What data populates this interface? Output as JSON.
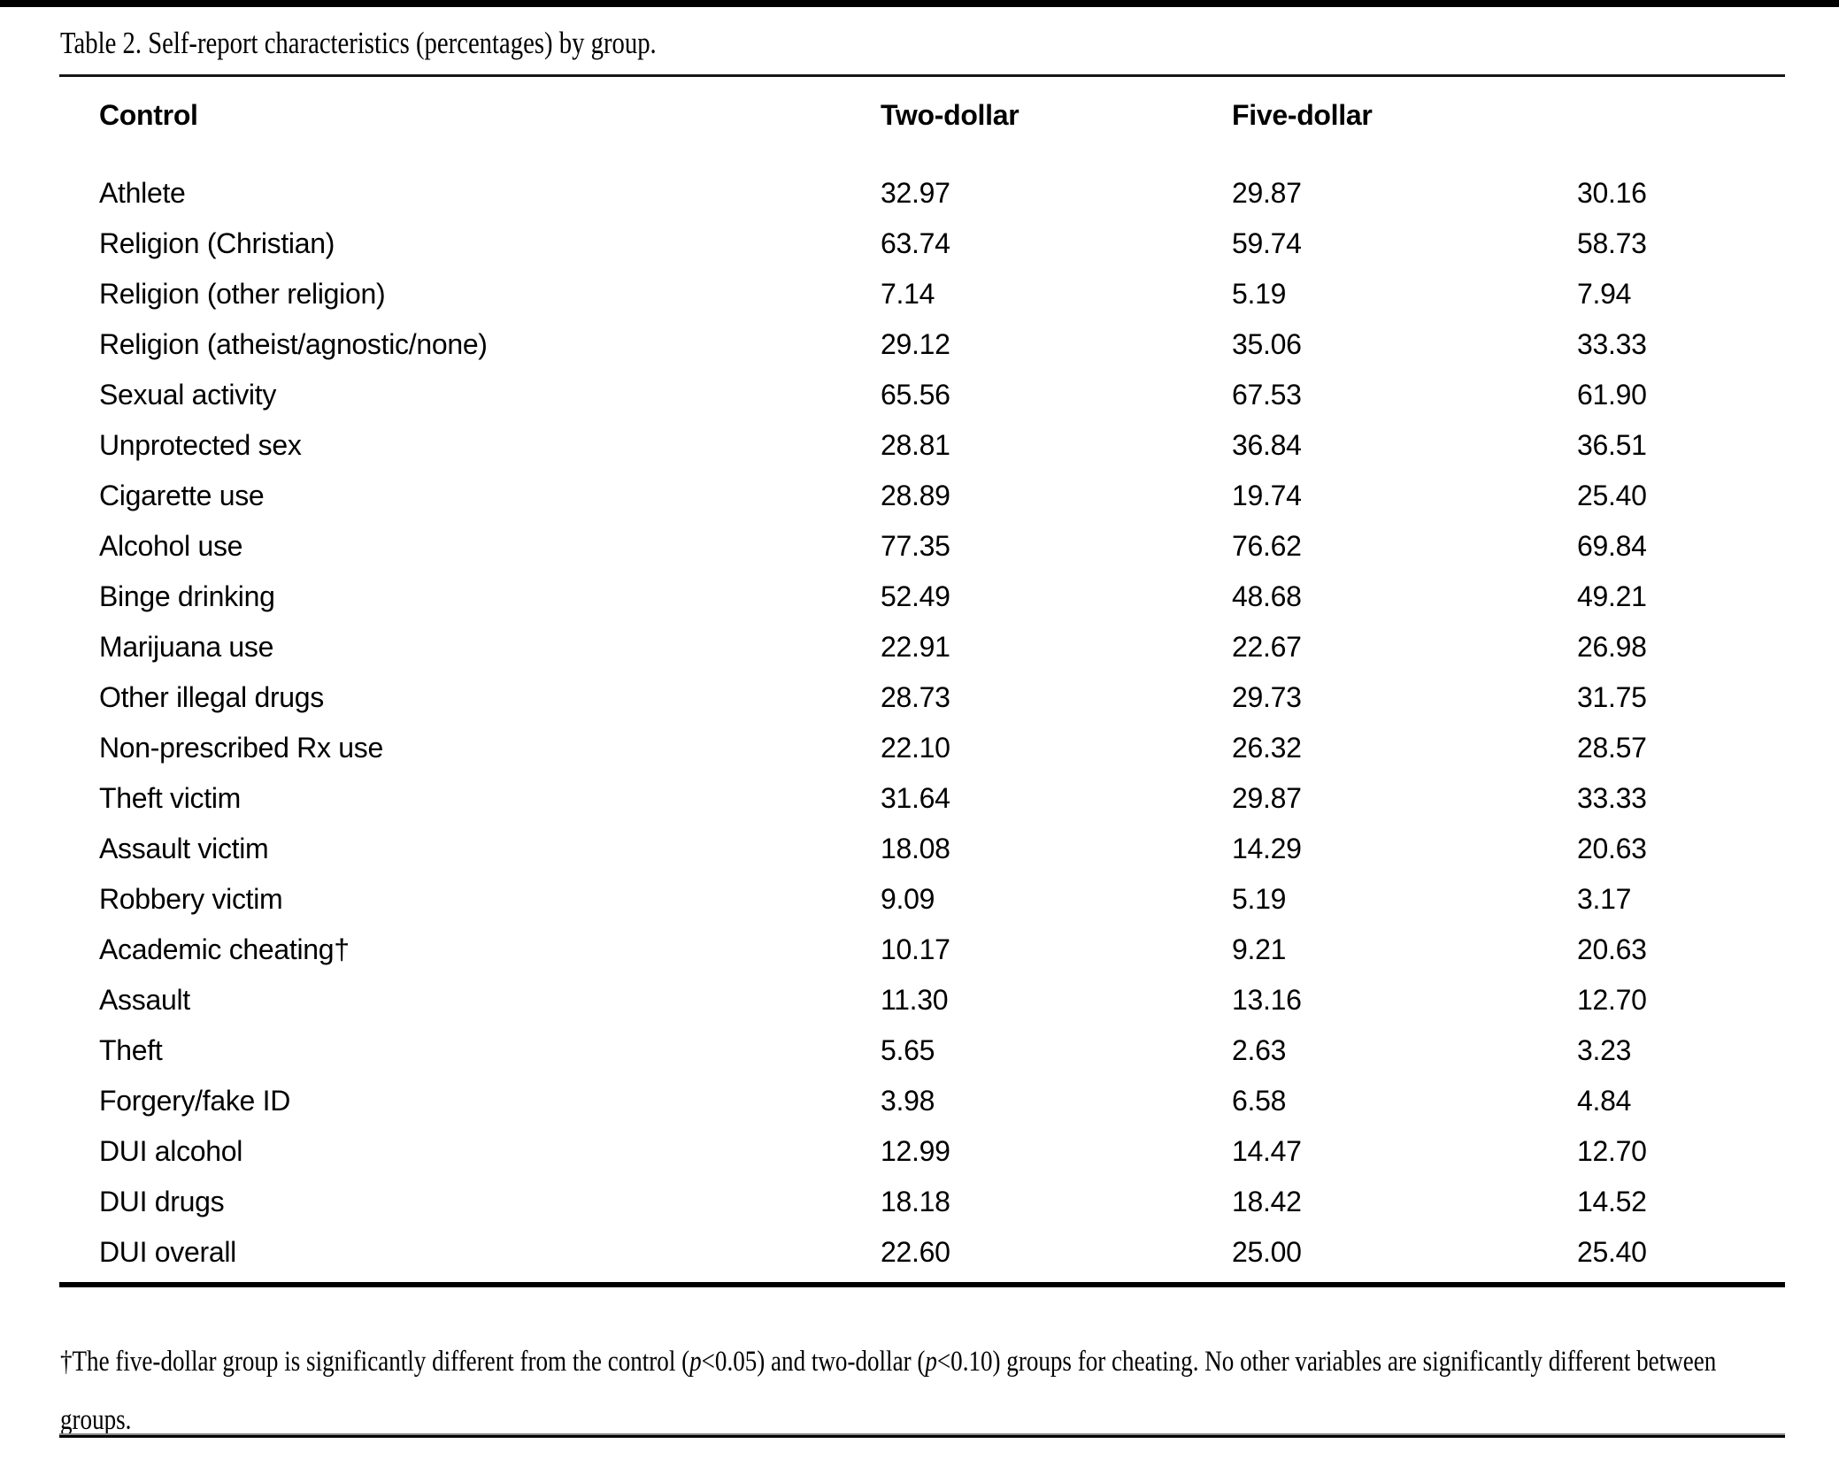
{
  "title": "Table 2. Self-report characteristics (percentages) by group.",
  "table": {
    "headers": [
      "Control",
      "Two-dollar",
      "Five-dollar",
      ""
    ],
    "rows": [
      {
        "label": "Athlete",
        "values": [
          "32.97",
          "29.87",
          "30.16"
        ]
      },
      {
        "label": "Religion (Christian)",
        "values": [
          "63.74",
          "59.74",
          "58.73"
        ]
      },
      {
        "label": "Religion (other religion)",
        "values": [
          "7.14",
          "5.19",
          "7.94"
        ]
      },
      {
        "label": "Religion (atheist/agnostic/none)",
        "values": [
          "29.12",
          "35.06",
          "33.33"
        ]
      },
      {
        "label": "Sexual activity",
        "values": [
          "65.56",
          "67.53",
          "61.90"
        ]
      },
      {
        "label": "Unprotected sex",
        "values": [
          "28.81",
          "36.84",
          "36.51"
        ]
      },
      {
        "label": "Cigarette use",
        "values": [
          "28.89",
          "19.74",
          "25.40"
        ]
      },
      {
        "label": "Alcohol use",
        "values": [
          "77.35",
          "76.62",
          "69.84"
        ]
      },
      {
        "label": "Binge drinking",
        "values": [
          "52.49",
          "48.68",
          "49.21"
        ]
      },
      {
        "label": "Marijuana use",
        "values": [
          "22.91",
          "22.67",
          "26.98"
        ]
      },
      {
        "label": "Other illegal drugs",
        "values": [
          "28.73",
          "29.73",
          "31.75"
        ]
      },
      {
        "label": "Non-prescribed Rx use",
        "values": [
          "22.10",
          "26.32",
          "28.57"
        ]
      },
      {
        "label": "Theft victim",
        "values": [
          "31.64",
          "29.87",
          "33.33"
        ]
      },
      {
        "label": "Assault victim",
        "values": [
          "18.08",
          "14.29",
          "20.63"
        ]
      },
      {
        "label": "Robbery victim",
        "values": [
          "9.09",
          "5.19",
          "3.17"
        ]
      },
      {
        "label": "Academic cheating†",
        "values": [
          "10.17",
          "9.21",
          "20.63"
        ]
      },
      {
        "label": "Assault",
        "values": [
          "11.30",
          "13.16",
          "12.70"
        ]
      },
      {
        "label": "Theft",
        "values": [
          "5.65",
          "2.63",
          "3.23"
        ]
      },
      {
        "label": "Forgery/fake ID",
        "values": [
          "3.98",
          "6.58",
          "4.84"
        ]
      },
      {
        "label": "DUI alcohol",
        "values": [
          "12.99",
          "14.47",
          "12.70"
        ]
      },
      {
        "label": "DUI drugs",
        "values": [
          "18.18",
          "18.42",
          "14.52"
        ]
      },
      {
        "label": "DUI overall",
        "values": [
          "22.60",
          "25.00",
          "25.40"
        ]
      }
    ]
  },
  "footnote": {
    "seg1": "†The five-dollar group is significantly different from the control (",
    "seg2": "p",
    "seg3": "<0.05) and two-dollar (",
    "seg4": "p",
    "seg5": "<0.10) groups for cheating. No other variables are significantly different between groups."
  },
  "colors": {
    "text": "#000000",
    "background": "#ffffff",
    "rule": "#000000",
    "rule_end_shadow": "#8a8a8a"
  }
}
